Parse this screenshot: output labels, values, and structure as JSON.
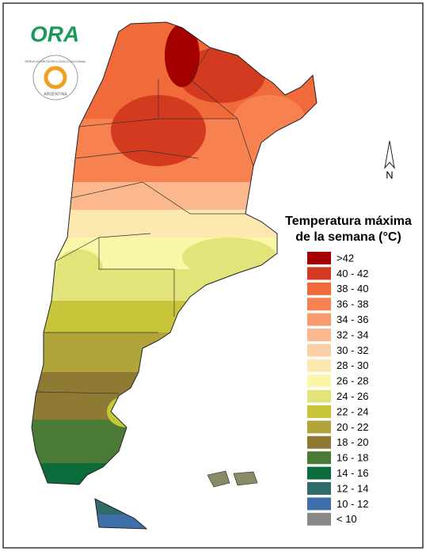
{
  "logo": {
    "text": "ORA",
    "seal_top": "SERVICIO METEOROLÓGICO NACIONAL",
    "seal_bottom": "ARGENTINA"
  },
  "north_label": "N",
  "legend": {
    "title": [
      "Temperatura máxima",
      "de la semana (°C)"
    ],
    "items": [
      {
        "label": ">42",
        "color": "#a50000"
      },
      {
        "label": "40 - 42",
        "color": "#d43a1f"
      },
      {
        "label": "38 - 40",
        "color": "#f06a3a"
      },
      {
        "label": "36 - 38",
        "color": "#f7814f"
      },
      {
        "label": "34 - 36",
        "color": "#f89b6e"
      },
      {
        "label": "32 - 34",
        "color": "#fbb88e"
      },
      {
        "label": "30 - 32",
        "color": "#fcd0a6"
      },
      {
        "label": "28 - 30",
        "color": "#fde8b0"
      },
      {
        "label": "26 - 28",
        "color": "#fbf7a8"
      },
      {
        "label": "24 - 26",
        "color": "#e2e47a"
      },
      {
        "label": "22 - 24",
        "color": "#c7c63a"
      },
      {
        "label": "20 - 22",
        "color": "#b0a43a"
      },
      {
        "label": "18 - 20",
        "color": "#8f7a33"
      },
      {
        "label": "16 - 18",
        "color": "#4b7a37"
      },
      {
        "label": "14 - 16",
        "color": "#0b6b3a"
      },
      {
        "label": "12 - 14",
        "color": "#2f6b6a"
      },
      {
        "label": "10 - 12",
        "color": "#3f6fa8"
      },
      {
        "label": "< 10",
        "color": "#888888"
      }
    ]
  }
}
